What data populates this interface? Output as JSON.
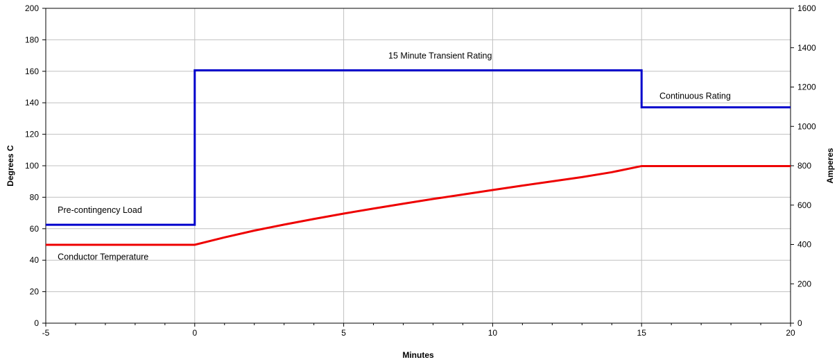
{
  "chart_data": {
    "type": "line",
    "xlabel": "Minutes",
    "ylabel_left": "Degrees C",
    "ylabel_right": "Amperes",
    "xlim": [
      -5,
      20
    ],
    "ylim_left": [
      0,
      200
    ],
    "ylim_right": [
      0,
      1600
    ],
    "x_ticks": [
      "-5",
      "0",
      "5",
      "10",
      "15",
      "20"
    ],
    "y_left_ticks": [
      "0",
      "20",
      "40",
      "60",
      "80",
      "100",
      "120",
      "140",
      "160",
      "180",
      "200"
    ],
    "y_right_ticks": [
      "0",
      "200",
      "400",
      "600",
      "800",
      "1000",
      "1200",
      "1400",
      "1600"
    ],
    "grid": true,
    "series": [
      {
        "axis": "right",
        "color": "#0000cc",
        "step": true,
        "x": [
          -5,
          0,
          0,
          15,
          15,
          20
        ],
        "y": [
          500,
          500,
          1285,
          1285,
          1097,
          1097
        ]
      },
      {
        "axis": "left",
        "color": "#ee0000",
        "step": false,
        "x": [
          -5,
          0,
          1,
          2,
          3,
          4,
          5,
          6,
          7,
          8,
          9,
          10,
          11,
          12,
          13,
          14,
          15,
          20
        ],
        "y": [
          49.8,
          49.8,
          54.5,
          58.8,
          62.6,
          66.2,
          69.6,
          72.8,
          75.9,
          78.9,
          81.7,
          84.6,
          87.4,
          90.1,
          92.8,
          95.9,
          99.8,
          99.8
        ]
      }
    ],
    "annotations": [
      {
        "text": "15 Minute Transient Rating",
        "x": 6.5,
        "y": 168
      },
      {
        "text": "Continuous Rating",
        "x": 15.6,
        "y": 142.5
      },
      {
        "text": "Pre-contingency Load",
        "x": -4.6,
        "y": 70
      },
      {
        "text": "Conductor Temperature",
        "x": -4.6,
        "y": 40.3
      }
    ]
  }
}
